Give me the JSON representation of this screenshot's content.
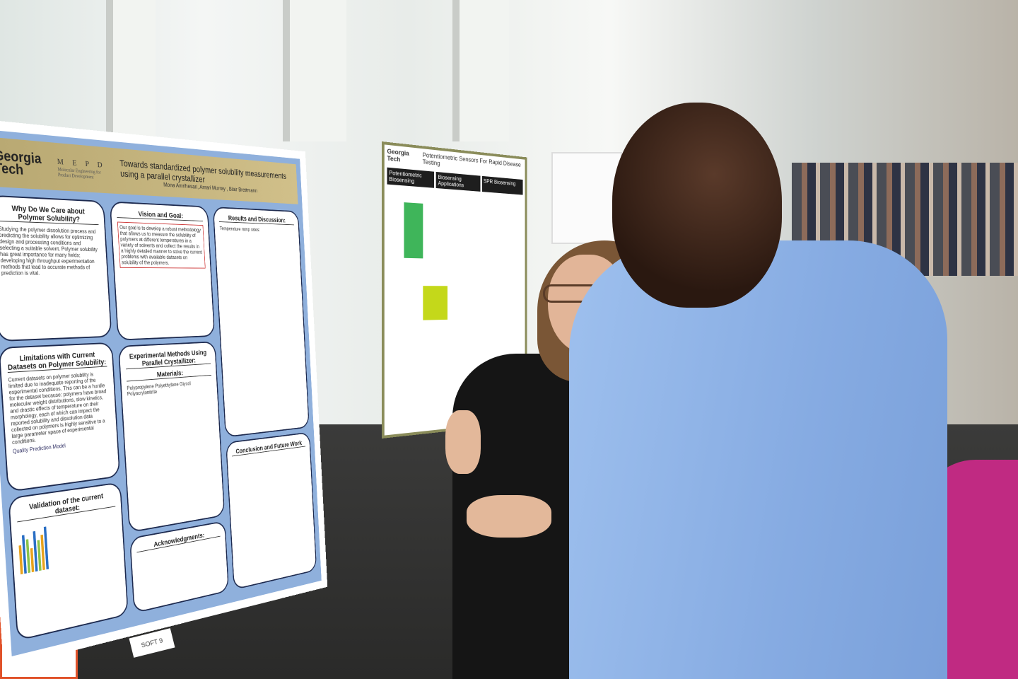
{
  "scene": "poster-session",
  "poster_main": {
    "logo": "Georgia Tech",
    "lab_logo": "M E P D",
    "lab_name": "Molecular Engineering for Product Development",
    "title": "Towards standardized polymer solubility measurements using a parallel crystallizer",
    "authors": "Mona Amrihesari, Amari Murray , Blair Brettmann",
    "sections": [
      {
        "heading": "Why Do We Care about Polymer Solubility?",
        "text": "Studying the polymer dissolution process and predicting the solubility allows for optimizing design and processing conditions and selecting a suitable solvent. Polymer solubility has great importance for many fields; developing high throughput experimentation methods that lead to accurate methods of prediction is vital."
      },
      {
        "heading": "Limitations with Current Datasets on Polymer Solubility:",
        "text": "Current datasets on polymer solubility is limited due to inadequate reporting of the experimental conditions. This can be a hurdle for the dataset because: polymers have broad molecular weight distributions, slow kinetics, and drastic effects of temperature on their morphology, each of which can impact the reported solubility and dissolution data collected on polymers is highly sensitive to a large parameter space of experimental conditions."
      },
      {
        "heading": "Validation of the current dataset:",
        "text": ""
      },
      {
        "heading": "Vision and Goal:",
        "text": "Our goal is to develop a robust methodology that allows us to measure the solubility of polymers at different temperatures in a variety of solvents and collect the results in a highly detailed manner to solve the current problems with available datasets on solubility of the polymers."
      },
      {
        "heading": "Experimental Methods Using Parallel Crystallizer:",
        "text": ""
      },
      {
        "heading": "Materials:",
        "text": "Polypropylene  Polyethylene Glycol  Polyacrylonitrile"
      },
      {
        "heading": "Acknowledgments:",
        "text": ""
      },
      {
        "heading": "Results and Discussion:",
        "text": "Temperature ramp rates:"
      },
      {
        "heading": "Conclusion and Future Work",
        "text": ""
      }
    ],
    "sign": "SOFT 9",
    "diagram_note": "Quality Prediction Model"
  },
  "poster_second": {
    "logo": "Georgia Tech",
    "title": "Potentiometric Sensors For Rapid Disease Testing",
    "columns": [
      "Potentiometric Biosensing",
      "Biosensing Applications",
      "SPR Biosensing"
    ]
  },
  "colors": {
    "poster_blue": "#8fb0dc",
    "banner_gold": "#c4b47e",
    "shirt_blue": "#93b6ea"
  }
}
